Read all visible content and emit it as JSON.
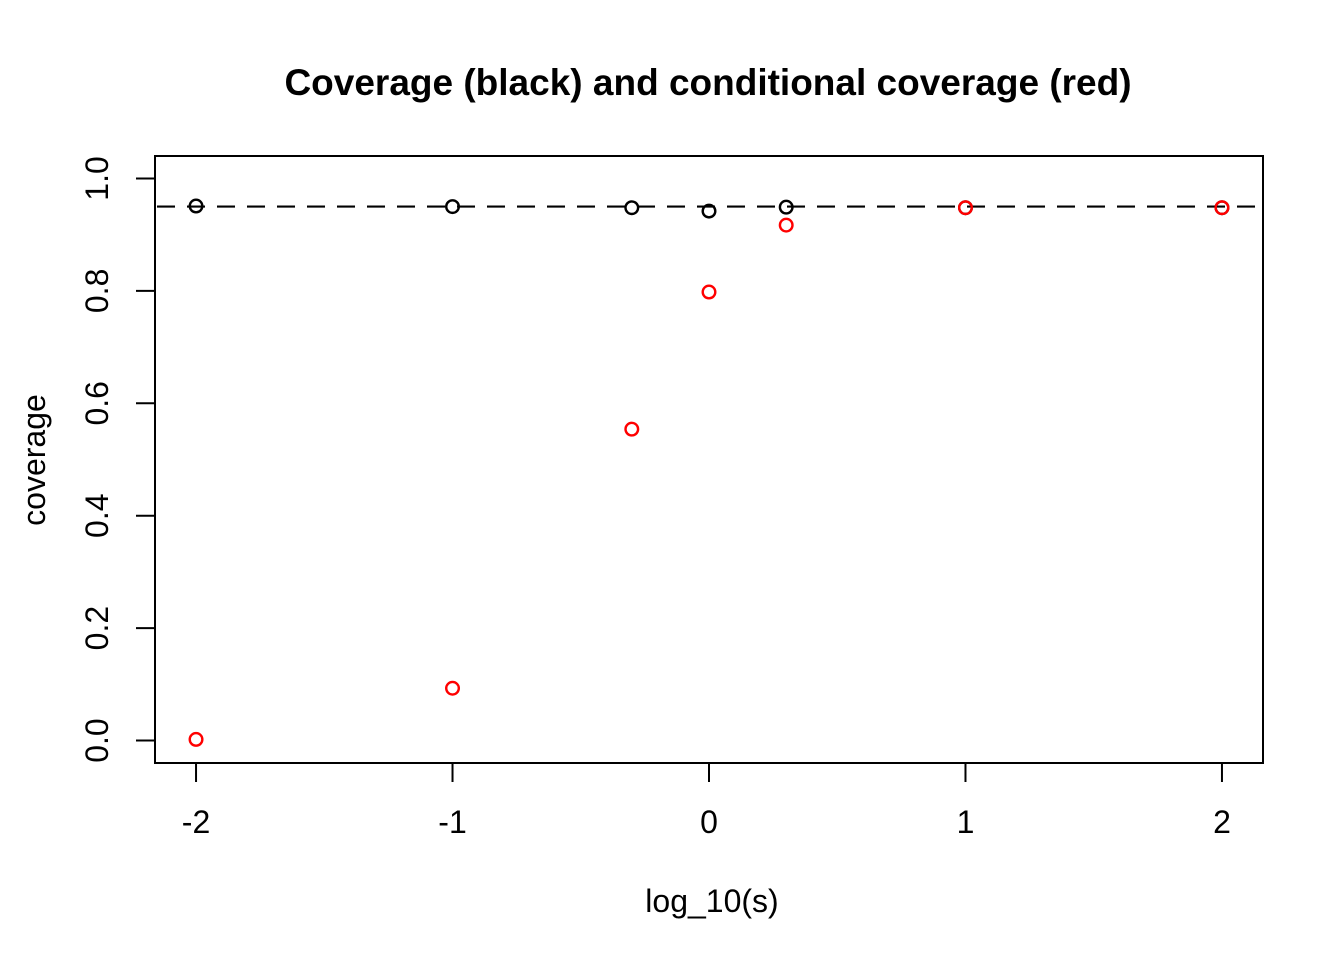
{
  "chart_data": {
    "type": "scatter",
    "title": "Coverage (black) and conditional coverage (red)",
    "xlabel": "log_10(s)",
    "ylabel": "coverage",
    "xlim": [
      -2.16,
      2.16
    ],
    "ylim": [
      -0.04,
      1.04
    ],
    "grid": false,
    "legend": "none (series identified by color in title)",
    "x_ticks": [
      -2,
      -1,
      0,
      1,
      2
    ],
    "x_tick_labels": [
      "-2",
      "-1",
      "0",
      "1",
      "2"
    ],
    "y_ticks": [
      0.0,
      0.2,
      0.4,
      0.6,
      0.8,
      1.0
    ],
    "y_tick_labels": [
      "0.0",
      "0.2",
      "0.4",
      "0.6",
      "0.8",
      "1.0"
    ],
    "reference_line": {
      "y": 0.95,
      "style": "dashed",
      "color": "#000000"
    },
    "x": [
      -2,
      -1,
      -0.301,
      0,
      0.301,
      1,
      2
    ],
    "series": [
      {
        "name": "coverage",
        "color": "#000000",
        "marker": "open-circle",
        "values": [
          0.951,
          0.95,
          0.948,
          0.942,
          0.949,
          0.948,
          0.948
        ]
      },
      {
        "name": "conditional coverage",
        "color": "#FF0000",
        "marker": "open-circle",
        "values": [
          0.002,
          0.093,
          0.554,
          0.798,
          0.917,
          0.948,
          0.948
        ]
      }
    ]
  }
}
